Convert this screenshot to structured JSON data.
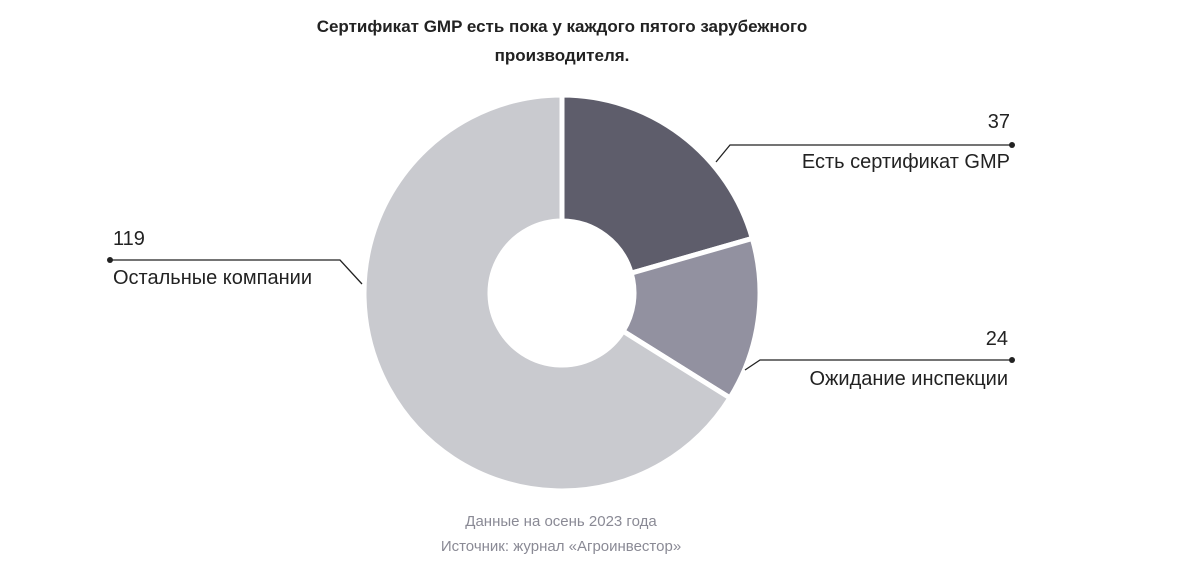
{
  "chart_data": {
    "type": "donut",
    "title": "Сертификат GMP есть пока у каждого пятого зарубежного производителя.",
    "categories": [
      "Есть сертификат GMP",
      "Ожидание инспекции",
      "Остальные компании"
    ],
    "values": [
      37,
      24,
      119
    ],
    "colors": [
      "#5e5d6b",
      "#9291a0",
      "#c9cacf"
    ],
    "notes": [
      "Данные на осень 2023 года",
      "Источник: журнал «Агроинвестор»"
    ]
  }
}
